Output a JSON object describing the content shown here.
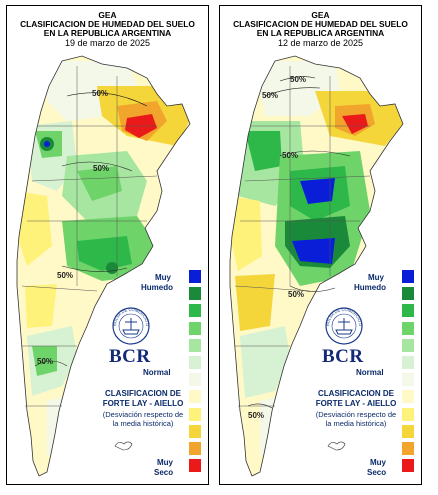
{
  "maps": [
    {
      "id": "left",
      "org": "GEA",
      "title_line1": "CLASIFICACION DE HUMEDAD DEL SUELO",
      "title_line2": "EN LA REPUBLICA ARGENTINA",
      "date": "19 de marzo de 2025",
      "contour_labels": [
        "50%",
        "50%",
        "50%",
        "50%"
      ]
    },
    {
      "id": "right",
      "org": "GEA",
      "title_line1": "CLASIFICACION DE HUMEDAD DEL SUELO",
      "title_line2": "EN LA REPUBLICA ARGENTINA",
      "date": "12 de marzo de 2025",
      "contour_labels": [
        "50%",
        "50%",
        "50%",
        "50%",
        "50%"
      ]
    }
  ],
  "legend": {
    "top_label_1": "Muy",
    "top_label_2": "Humedo",
    "mid_label": "Normal",
    "bottom_label_1": "Muy",
    "bottom_label_2": "Seco",
    "colors": [
      "#0a1ed8",
      "#1a8a3a",
      "#2eb84a",
      "#6ed46a",
      "#a6e6a0",
      "#d6f2d2",
      "#f4f8e8",
      "#fff9c8",
      "#fff27a",
      "#f5d63a",
      "#f2a52c",
      "#ea1a1a"
    ]
  },
  "brand": {
    "logo_text": "BCR",
    "seal_text": "BOLSA DE COMERCIO DE ROSARIO"
  },
  "method": {
    "line1": "CLASIFICACION DE",
    "line2": "FORTE LAY - AIELLO",
    "sub1": "(Desviación respecto de",
    "sub2": "la media histórica)"
  }
}
